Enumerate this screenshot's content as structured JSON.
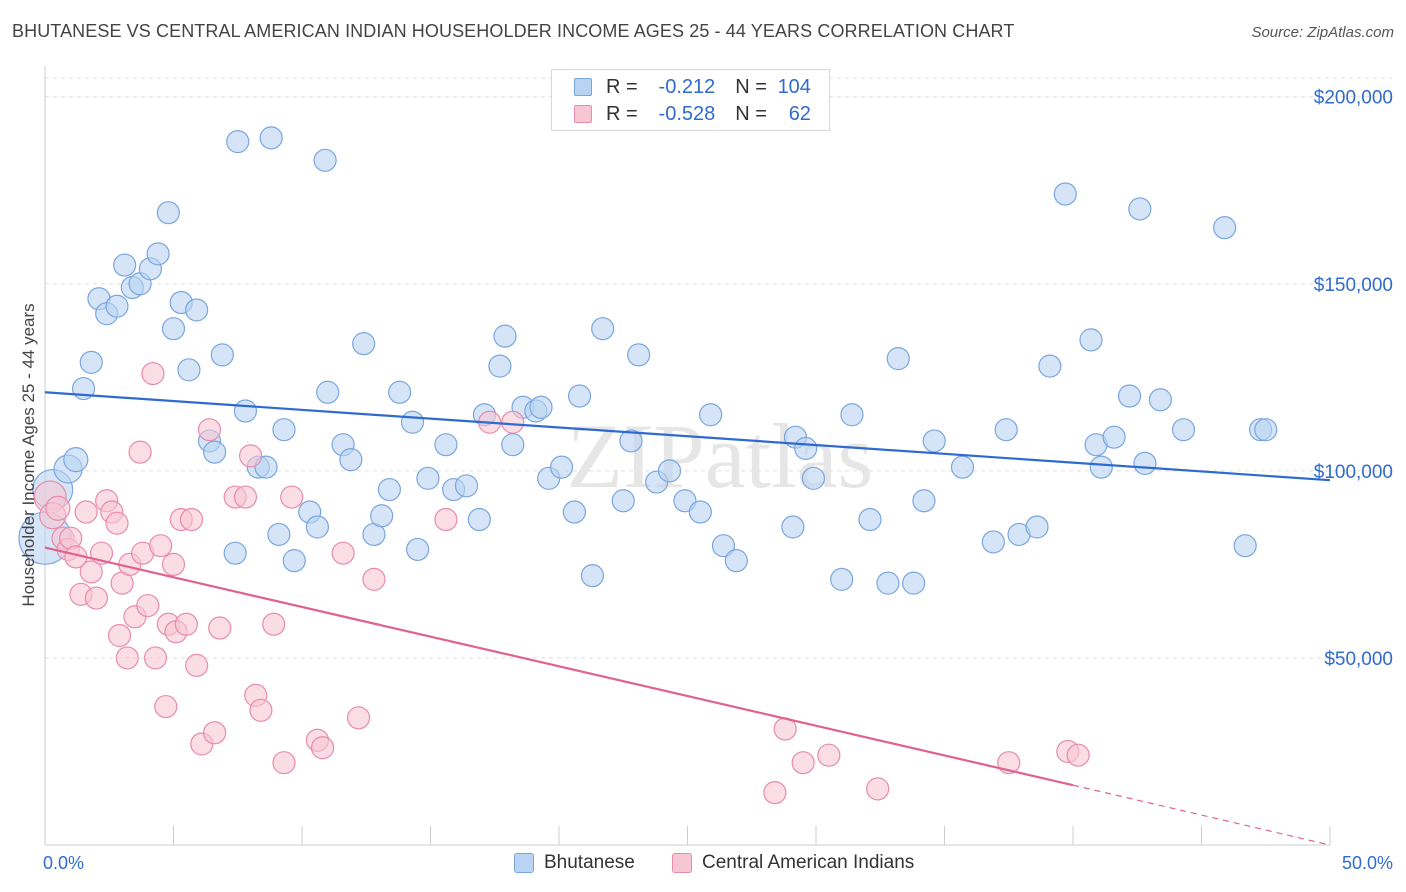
{
  "title": "BHUTANESE VS CENTRAL AMERICAN INDIAN HOUSEHOLDER INCOME AGES 25 - 44 YEARS CORRELATION CHART",
  "source": "Source: ZipAtlas.com",
  "watermark": "ZIPatlas",
  "legend_stats": [
    {
      "r_label": "R =",
      "r_value": "-0.212",
      "n_label": "N =",
      "n_value": "104"
    },
    {
      "r_label": "R =",
      "r_value": "-0.528",
      "n_label": "N =",
      "n_value": "62"
    }
  ],
  "colors": {
    "blue_fill": "#b9d3f2",
    "blue_stroke": "#7aa6df",
    "blue_line": "#2f6bcf",
    "pink_fill": "#f7c6d4",
    "pink_stroke": "#e88ca8",
    "pink_line": "#e0628e",
    "axis_label": "#2f6bcf",
    "grid": "#dddddd"
  },
  "chart_data": {
    "type": "scatter",
    "xlabel": "",
    "ylabel": "Householder Income Ages 25 - 44 years",
    "xlim": [
      0,
      50
    ],
    "ylim": [
      0,
      205000
    ],
    "x_tick_labels": {
      "left": "0.0%",
      "right": "50.0%"
    },
    "y_ticks": [
      {
        "value": 50000,
        "label": "$50,000"
      },
      {
        "value": 100000,
        "label": "$100,000"
      },
      {
        "value": 150000,
        "label": "$150,000"
      },
      {
        "value": 200000,
        "label": "$200,000"
      }
    ],
    "grid": true,
    "legend_position": "bottom",
    "series": [
      {
        "name": "Bhutanese",
        "color": "blue",
        "trend": {
          "x0": 0,
          "y0": 121000,
          "x1": 50,
          "y1": 97500
        },
        "points": [
          [
            0.0,
            82000,
            26
          ],
          [
            0.3,
            95000,
            20
          ],
          [
            0.9,
            100500,
            14
          ],
          [
            1.2,
            103000,
            12
          ],
          [
            1.5,
            122000,
            11
          ],
          [
            1.8,
            129000,
            11
          ],
          [
            2.1,
            146000,
            11
          ],
          [
            2.4,
            142000,
            11
          ],
          [
            2.8,
            144000,
            11
          ],
          [
            3.1,
            155000,
            11
          ],
          [
            3.4,
            149000,
            11
          ],
          [
            3.7,
            150000,
            11
          ],
          [
            4.1,
            154000,
            11
          ],
          [
            4.4,
            158000,
            11
          ],
          [
            4.8,
            169000,
            11
          ],
          [
            5.0,
            138000,
            11
          ],
          [
            5.3,
            145000,
            11
          ],
          [
            5.6,
            127000,
            11
          ],
          [
            5.9,
            143000,
            11
          ],
          [
            6.4,
            108000,
            11
          ],
          [
            6.6,
            105000,
            11
          ],
          [
            6.9,
            131000,
            11
          ],
          [
            7.4,
            78000,
            11
          ],
          [
            7.5,
            188000,
            11
          ],
          [
            7.8,
            116000,
            11
          ],
          [
            8.3,
            101000,
            11
          ],
          [
            8.6,
            101000,
            11
          ],
          [
            8.8,
            189000,
            11
          ],
          [
            9.1,
            83000,
            11
          ],
          [
            9.3,
            111000,
            11
          ],
          [
            9.7,
            76000,
            11
          ],
          [
            10.3,
            89000,
            11
          ],
          [
            10.6,
            85000,
            11
          ],
          [
            10.9,
            183000,
            11
          ],
          [
            11.0,
            121000,
            11
          ],
          [
            11.6,
            107000,
            11
          ],
          [
            11.9,
            103000,
            11
          ],
          [
            12.4,
            134000,
            11
          ],
          [
            12.8,
            83000,
            11
          ],
          [
            13.1,
            88000,
            11
          ],
          [
            13.4,
            95000,
            11
          ],
          [
            13.8,
            121000,
            11
          ],
          [
            14.3,
            113000,
            11
          ],
          [
            14.5,
            79000,
            11
          ],
          [
            14.9,
            98000,
            11
          ],
          [
            15.6,
            107000,
            11
          ],
          [
            15.9,
            95000,
            11
          ],
          [
            16.4,
            96000,
            11
          ],
          [
            16.9,
            87000,
            11
          ],
          [
            17.1,
            115000,
            11
          ],
          [
            17.7,
            128000,
            11
          ],
          [
            17.9,
            136000,
            11
          ],
          [
            18.2,
            107000,
            11
          ],
          [
            18.6,
            117000,
            11
          ],
          [
            19.1,
            116000,
            11
          ],
          [
            19.3,
            117000,
            11
          ],
          [
            19.6,
            98000,
            11
          ],
          [
            20.1,
            101000,
            11
          ],
          [
            20.6,
            89000,
            11
          ],
          [
            20.8,
            120000,
            11
          ],
          [
            21.3,
            72000,
            11
          ],
          [
            21.7,
            138000,
            11
          ],
          [
            22.5,
            92000,
            11
          ],
          [
            22.8,
            108000,
            11
          ],
          [
            23.1,
            131000,
            11
          ],
          [
            23.8,
            97000,
            11
          ],
          [
            24.3,
            100000,
            11
          ],
          [
            24.9,
            92000,
            11
          ],
          [
            25.5,
            89000,
            11
          ],
          [
            25.9,
            115000,
            11
          ],
          [
            26.4,
            80000,
            11
          ],
          [
            26.9,
            76000,
            11
          ],
          [
            29.1,
            85000,
            11
          ],
          [
            29.2,
            109000,
            11
          ],
          [
            29.6,
            106000,
            11
          ],
          [
            29.9,
            98000,
            11
          ],
          [
            31.0,
            71000,
            11
          ],
          [
            31.4,
            115000,
            11
          ],
          [
            32.1,
            87000,
            11
          ],
          [
            32.8,
            70000,
            11
          ],
          [
            33.2,
            130000,
            11
          ],
          [
            33.8,
            70000,
            11
          ],
          [
            34.2,
            92000,
            11
          ],
          [
            34.6,
            108000,
            11
          ],
          [
            35.7,
            101000,
            11
          ],
          [
            36.9,
            81000,
            11
          ],
          [
            37.4,
            111000,
            11
          ],
          [
            37.9,
            83000,
            11
          ],
          [
            38.6,
            85000,
            11
          ],
          [
            39.1,
            128000,
            11
          ],
          [
            39.7,
            174000,
            11
          ],
          [
            40.7,
            135000,
            11
          ],
          [
            40.9,
            107000,
            11
          ],
          [
            41.1,
            101000,
            11
          ],
          [
            41.6,
            109000,
            11
          ],
          [
            42.2,
            120000,
            11
          ],
          [
            42.6,
            170000,
            11
          ],
          [
            42.8,
            102000,
            11
          ],
          [
            43.4,
            119000,
            11
          ],
          [
            44.3,
            111000,
            11
          ],
          [
            45.9,
            165000,
            11
          ],
          [
            46.7,
            80000,
            11
          ],
          [
            47.3,
            111000,
            11
          ],
          [
            47.5,
            111000,
            11
          ]
        ]
      },
      {
        "name": "Central American Indians",
        "color": "pink",
        "trend": {
          "x0": 0,
          "y0": 79500,
          "x1": 40,
          "y1": 16000,
          "dash_x1": 50,
          "dash_y1": 0
        },
        "points": [
          [
            0.2,
            93000,
            16
          ],
          [
            0.3,
            88000,
            13
          ],
          [
            0.5,
            90000,
            12
          ],
          [
            0.7,
            82000,
            11
          ],
          [
            0.9,
            79000,
            11
          ],
          [
            1.0,
            82000,
            11
          ],
          [
            1.2,
            77000,
            11
          ],
          [
            1.4,
            67000,
            11
          ],
          [
            1.6,
            89000,
            11
          ],
          [
            1.8,
            73000,
            11
          ],
          [
            2.0,
            66000,
            11
          ],
          [
            2.2,
            78000,
            11
          ],
          [
            2.4,
            92000,
            11
          ],
          [
            2.6,
            89000,
            11
          ],
          [
            2.8,
            86000,
            11
          ],
          [
            2.9,
            56000,
            11
          ],
          [
            3.0,
            70000,
            11
          ],
          [
            3.2,
            50000,
            11
          ],
          [
            3.3,
            75000,
            11
          ],
          [
            3.5,
            61000,
            11
          ],
          [
            3.7,
            105000,
            11
          ],
          [
            3.8,
            78000,
            11
          ],
          [
            4.0,
            64000,
            11
          ],
          [
            4.2,
            126000,
            11
          ],
          [
            4.3,
            50000,
            11
          ],
          [
            4.5,
            80000,
            11
          ],
          [
            4.7,
            37000,
            11
          ],
          [
            4.8,
            59000,
            11
          ],
          [
            5.0,
            75000,
            11
          ],
          [
            5.1,
            57000,
            11
          ],
          [
            5.3,
            87000,
            11
          ],
          [
            5.5,
            59000,
            11
          ],
          [
            5.7,
            87000,
            11
          ],
          [
            5.9,
            48000,
            11
          ],
          [
            6.1,
            27000,
            11
          ],
          [
            6.4,
            111000,
            11
          ],
          [
            6.6,
            30000,
            11
          ],
          [
            6.8,
            58000,
            11
          ],
          [
            7.4,
            93000,
            11
          ],
          [
            7.8,
            93000,
            11
          ],
          [
            8.0,
            104000,
            11
          ],
          [
            8.2,
            40000,
            11
          ],
          [
            8.4,
            36000,
            11
          ],
          [
            8.9,
            59000,
            11
          ],
          [
            9.3,
            22000,
            11
          ],
          [
            9.6,
            93000,
            11
          ],
          [
            10.6,
            28000,
            11
          ],
          [
            10.8,
            26000,
            11
          ],
          [
            11.6,
            78000,
            11
          ],
          [
            12.2,
            34000,
            11
          ],
          [
            12.8,
            71000,
            11
          ],
          [
            15.6,
            87000,
            11
          ],
          [
            17.3,
            113000,
            11
          ],
          [
            18.2,
            113000,
            11
          ],
          [
            28.4,
            14000,
            11
          ],
          [
            28.8,
            31000,
            11
          ],
          [
            29.5,
            22000,
            11
          ],
          [
            30.5,
            24000,
            11
          ],
          [
            32.4,
            15000,
            11
          ],
          [
            37.5,
            22000,
            11
          ],
          [
            39.8,
            25000,
            11
          ],
          [
            40.2,
            24000,
            11
          ]
        ]
      }
    ]
  }
}
